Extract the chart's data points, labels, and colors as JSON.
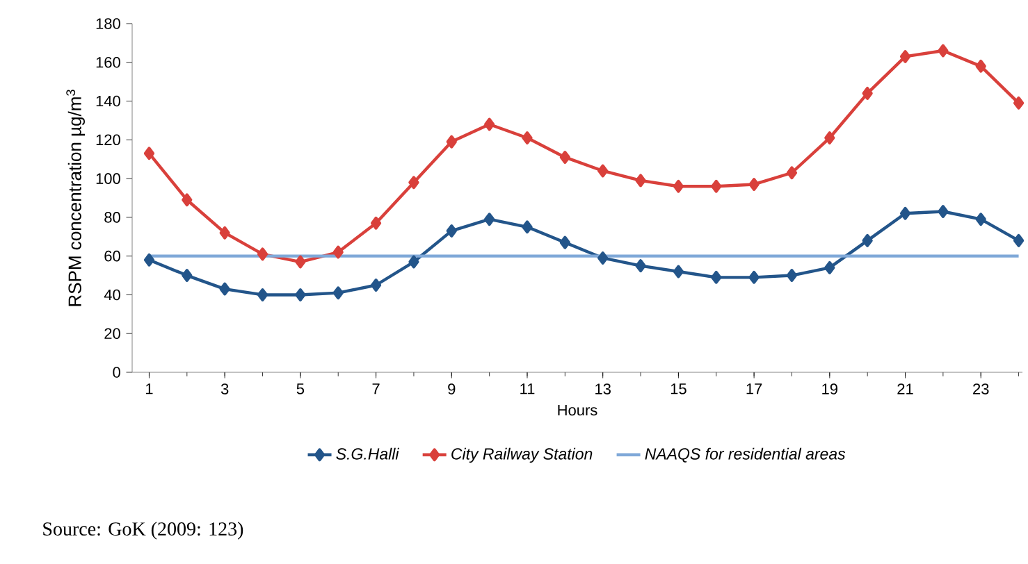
{
  "chart_data": {
    "type": "line",
    "xlabel": "Hours",
    "ylabel": "RSPM concentration µg/m$^{3}$",
    "categories": [
      "1",
      null,
      "3",
      null,
      "5",
      null,
      "7",
      null,
      "9",
      null,
      "11",
      null,
      "13",
      null,
      "15",
      null,
      "17",
      null,
      "19",
      null,
      "21",
      null,
      "23",
      null
    ],
    "series": [
      {
        "name": "S.G.Halli",
        "color": "#23558a",
        "values": [
          58,
          50,
          43,
          40,
          40,
          41,
          45,
          57,
          73,
          79,
          75,
          67,
          59,
          55,
          52,
          49,
          49,
          50,
          54,
          68,
          82,
          83,
          79,
          68
        ]
      },
      {
        "name": "City Railway Station",
        "color": "#d9403b",
        "values": [
          113,
          89,
          72,
          61,
          57,
          62,
          77,
          98,
          119,
          128,
          121,
          111,
          104,
          99,
          96,
          96,
          97,
          103,
          121,
          144,
          163,
          166,
          158,
          139
        ]
      },
      {
        "name": "NAAQS for residential areas",
        "color": "#7fa8d8",
        "marker": "none",
        "values": [
          60,
          60,
          60,
          60,
          60,
          60,
          60,
          60,
          60,
          60,
          60,
          60,
          60,
          60,
          60,
          60,
          60,
          60,
          60,
          60,
          60,
          60,
          60,
          60
        ]
      }
    ],
    "ylim": [
      0,
      180
    ],
    "yticks": [
      0,
      20,
      40,
      60,
      80,
      100,
      120,
      140,
      160,
      180
    ],
    "marker": "diamond",
    "line_style": "solid",
    "legend": "bottom",
    "annotations": [
      "Source: GoK (2009: 123)"
    ]
  }
}
